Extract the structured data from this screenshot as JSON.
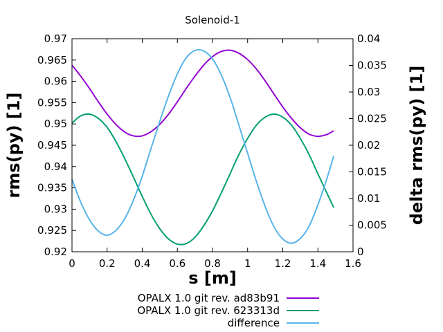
{
  "chart_data": {
    "type": "line",
    "title": "Solenoid-1",
    "xlabel": "s [m]",
    "ylabel": "rms(py) [1]",
    "y2label": "delta rms(py) [1]",
    "xlim": [
      0,
      1.6
    ],
    "ylim": [
      0.92,
      0.97
    ],
    "y2lim": [
      0,
      0.04
    ],
    "xticks": [
      "0",
      "0.2",
      "0.4",
      "0.6",
      "0.8",
      "1",
      "1.2",
      "1.4",
      "1.6"
    ],
    "yticks": [
      "0.92",
      "0.925",
      "0.93",
      "0.935",
      "0.94",
      "0.945",
      "0.95",
      "0.955",
      "0.96",
      "0.965",
      "0.97"
    ],
    "y2ticks": [
      "0",
      "0.005",
      "0.01",
      "0.015",
      "0.02",
      "0.025",
      "0.03",
      "0.035",
      "0.04"
    ],
    "grid": false,
    "legend_placement": "bottom",
    "x": [
      0,
      0.05,
      0.1,
      0.15,
      0.2,
      0.25,
      0.3,
      0.35,
      0.4,
      0.45,
      0.5,
      0.55,
      0.6,
      0.65,
      0.7,
      0.75,
      0.8,
      0.85,
      0.9,
      0.95,
      1.0,
      1.05,
      1.1,
      1.15,
      1.2,
      1.25,
      1.3,
      1.35,
      1.4,
      1.45,
      1.49
    ],
    "series": [
      {
        "name": "OPALX 1.0 git rev. ad83b91",
        "axis": "y",
        "color": "#9400d3",
        "values": [
          0.9638,
          0.9612,
          0.9583,
          0.9552,
          0.9523,
          0.9499,
          0.9481,
          0.9472,
          0.9472,
          0.9482,
          0.9499,
          0.9523,
          0.9552,
          0.9583,
          0.9612,
          0.9638,
          0.9658,
          0.967,
          0.9673,
          0.9666,
          0.9651,
          0.9629,
          0.9601,
          0.957,
          0.954,
          0.9513,
          0.9491,
          0.9476,
          0.9471,
          0.9475,
          0.9484
        ]
      },
      {
        "name": "OPALX 1.0 git rev. 623313d",
        "axis": "y",
        "color": "#009e73",
        "values": [
          0.9502,
          0.9519,
          0.9523,
          0.9513,
          0.9492,
          0.9459,
          0.9419,
          0.9375,
          0.933,
          0.9288,
          0.9254,
          0.923,
          0.9218,
          0.9219,
          0.9234,
          0.9261,
          0.9296,
          0.9338,
          0.9383,
          0.9428,
          0.9466,
          0.9497,
          0.9516,
          0.9523,
          0.9516,
          0.9497,
          0.9466,
          0.9428,
          0.9383,
          0.9339,
          0.9304
        ]
      },
      {
        "name": "difference",
        "axis": "y2",
        "color": "#56b4e9",
        "values": [
          0.0136,
          0.0093,
          0.006,
          0.0039,
          0.0031,
          0.004,
          0.0062,
          0.0097,
          0.0142,
          0.0194,
          0.0245,
          0.0293,
          0.0334,
          0.0364,
          0.0378,
          0.0377,
          0.0362,
          0.0332,
          0.029,
          0.0238,
          0.0185,
          0.0132,
          0.0085,
          0.0047,
          0.0024,
          0.0016,
          0.0025,
          0.0048,
          0.0088,
          0.0136,
          0.018
        ]
      }
    ]
  }
}
